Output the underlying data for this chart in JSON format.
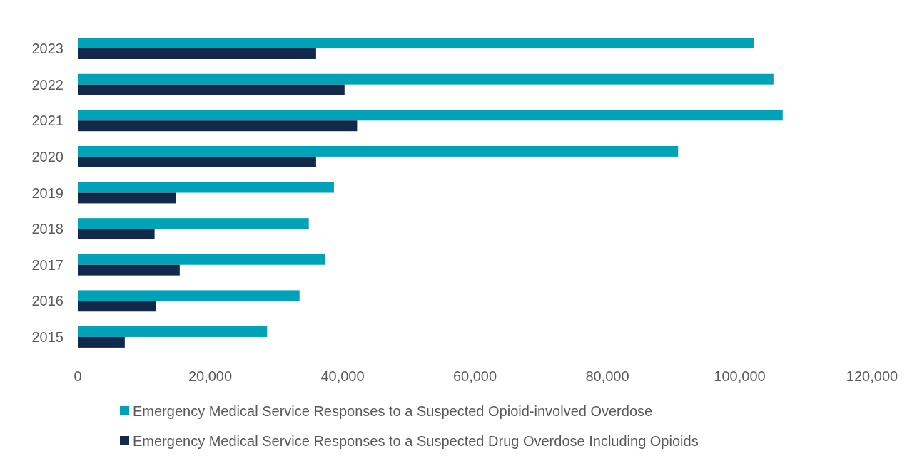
{
  "chart_data": {
    "type": "bar",
    "orientation": "horizontal",
    "categories": [
      "2023",
      "2022",
      "2021",
      "2020",
      "2019",
      "2018",
      "2017",
      "2016",
      "2015"
    ],
    "series": [
      {
        "name": "Emergency Medical Service Responses to a Suspected Opioid-involved Overdose",
        "color": "#00a2b8",
        "values": [
          102100,
          105100,
          106500,
          90700,
          38700,
          34900,
          37400,
          33500,
          28600
        ]
      },
      {
        "name": "Emergency Medical Service Responses to a Suspected Drug Overdose Including Opioids",
        "color": "#13294b",
        "values": [
          36000,
          40300,
          42200,
          36000,
          14800,
          11600,
          15400,
          11800,
          7100
        ]
      }
    ],
    "xlim": [
      0,
      120000
    ],
    "xticks": [
      {
        "value": 0,
        "label": "0"
      },
      {
        "value": 20000,
        "label": "20,000"
      },
      {
        "value": 40000,
        "label": "40,000"
      },
      {
        "value": 60000,
        "label": "60,000"
      },
      {
        "value": 80000,
        "label": "80,000"
      },
      {
        "value": 100000,
        "label": "100,000"
      },
      {
        "value": 120000,
        "label": "120,000"
      }
    ],
    "grid": false,
    "legend": "bottom"
  }
}
